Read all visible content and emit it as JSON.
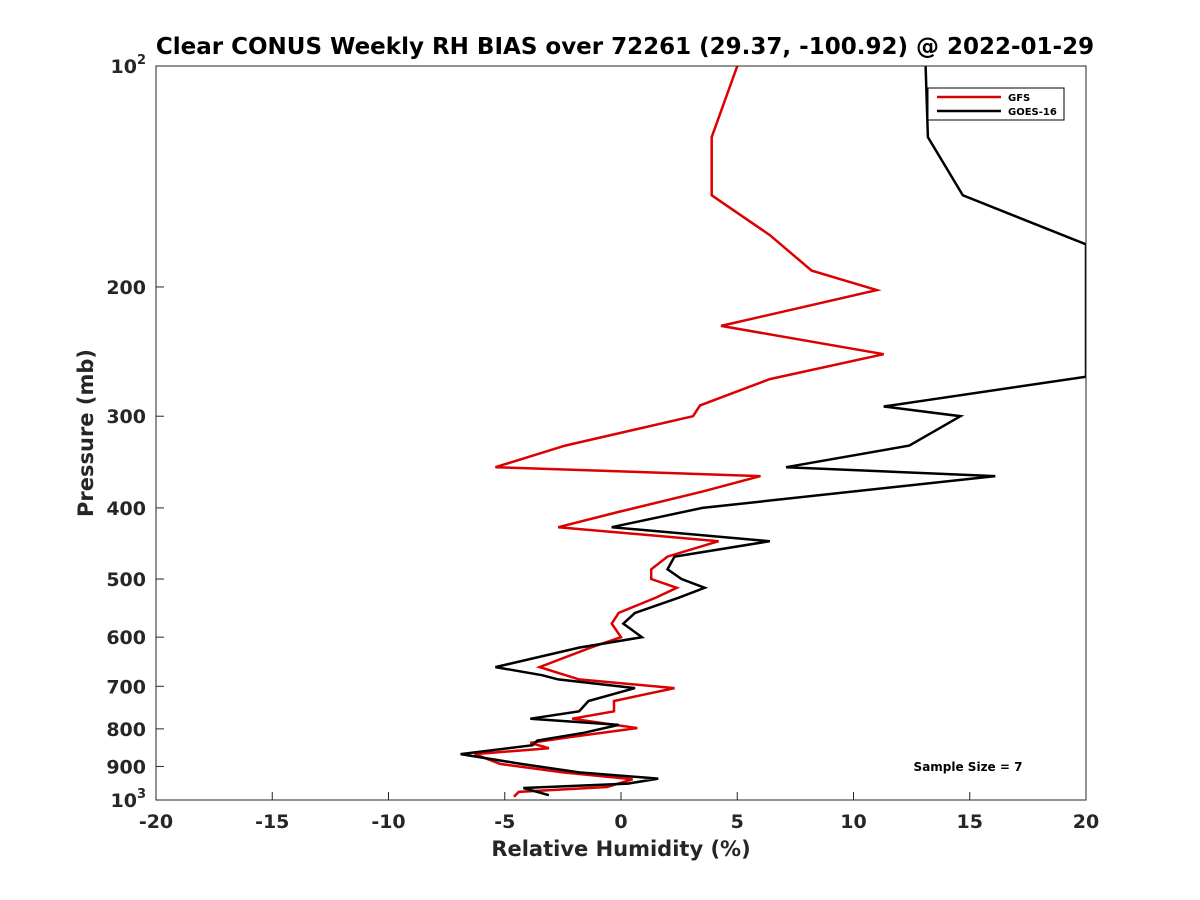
{
  "chart_data": {
    "type": "line",
    "title": "Clear CONUS Weekly RH BIAS over 72261 (29.37, -100.92) @ 2022-01-29",
    "xlabel": "Relative Humidity (%)",
    "ylabel": "Pressure (mb)",
    "xlim": [
      -20,
      20
    ],
    "ylim": [
      100,
      1000
    ],
    "y_scale": "log",
    "y_reversed": true,
    "grid": false,
    "x_ticks": [
      "-20",
      "-15",
      "-10",
      "-5",
      "0",
      "5",
      "10",
      "15",
      "20"
    ],
    "y_ticks": [
      {
        "value": 100,
        "base": "10",
        "exp": "2"
      },
      {
        "value": 200,
        "base": "200",
        "exp": ""
      },
      {
        "value": 300,
        "base": "300",
        "exp": ""
      },
      {
        "value": 400,
        "base": "400",
        "exp": ""
      },
      {
        "value": 500,
        "base": "500",
        "exp": ""
      },
      {
        "value": 600,
        "base": "600",
        "exp": ""
      },
      {
        "value": 700,
        "base": "700",
        "exp": ""
      },
      {
        "value": 800,
        "base": "800",
        "exp": ""
      },
      {
        "value": 900,
        "base": "900",
        "exp": ""
      },
      {
        "value": 1000,
        "base": "10",
        "exp": "3"
      }
    ],
    "legend_position": "top-right",
    "annotation": "Sample Size = 7",
    "series": [
      {
        "name": "GFS",
        "color": "#dd0000",
        "points": [
          [
            5.0,
            100
          ],
          [
            3.9,
            125
          ],
          [
            3.9,
            150
          ],
          [
            6.4,
            170
          ],
          [
            8.2,
            190
          ],
          [
            11.0,
            202
          ],
          [
            4.3,
            226
          ],
          [
            11.3,
            247
          ],
          [
            6.4,
            267
          ],
          [
            3.4,
            290
          ],
          [
            3.1,
            300
          ],
          [
            -2.4,
            329
          ],
          [
            -5.4,
            352
          ],
          [
            6.0,
            362
          ],
          [
            3.5,
            380
          ],
          [
            -0.1,
            405
          ],
          [
            -2.7,
            425
          ],
          [
            4.2,
            444
          ],
          [
            2.0,
            466
          ],
          [
            1.3,
            485
          ],
          [
            1.3,
            500
          ],
          [
            2.4,
            514
          ],
          [
            1.5,
            530
          ],
          [
            -0.1,
            556
          ],
          [
            -0.4,
            575
          ],
          [
            0.0,
            600
          ],
          [
            -1.3,
            620
          ],
          [
            -3.5,
            659
          ],
          [
            -1.8,
            685
          ],
          [
            2.3,
            704
          ],
          [
            -0.3,
            733
          ],
          [
            -0.3,
            757
          ],
          [
            -2.1,
            775
          ],
          [
            0.7,
            798
          ],
          [
            -2.2,
            821
          ],
          [
            -3.9,
            836
          ],
          [
            -3.1,
            850
          ],
          [
            -6.3,
            866
          ],
          [
            -5.2,
            893
          ],
          [
            -2.5,
            917
          ],
          [
            0.5,
            937
          ],
          [
            -0.6,
            960
          ],
          [
            -4.4,
            975
          ],
          [
            -4.6,
            990
          ]
        ]
      },
      {
        "name": "GOES-16",
        "color": "#000000",
        "points": [
          [
            13.1,
            100
          ],
          [
            13.2,
            125
          ],
          [
            14.7,
            150
          ],
          [
            20.0,
            175
          ],
          [
            20.0,
            265
          ],
          [
            11.3,
            291
          ],
          [
            14.6,
            300
          ],
          [
            12.4,
            329
          ],
          [
            7.1,
            352
          ],
          [
            16.1,
            362
          ],
          [
            3.5,
            400
          ],
          [
            -0.4,
            425
          ],
          [
            6.4,
            444
          ],
          [
            2.3,
            466
          ],
          [
            2.0,
            485
          ],
          [
            2.6,
            500
          ],
          [
            3.6,
            514
          ],
          [
            2.5,
            530
          ],
          [
            0.6,
            556
          ],
          [
            0.1,
            575
          ],
          [
            0.9,
            600
          ],
          [
            -1.8,
            620
          ],
          [
            -5.4,
            659
          ],
          [
            -3.4,
            676
          ],
          [
            -2.7,
            685
          ],
          [
            0.6,
            704
          ],
          [
            -1.4,
            733
          ],
          [
            -1.8,
            757
          ],
          [
            -3.9,
            775
          ],
          [
            -0.1,
            790
          ],
          [
            -1.6,
            810
          ],
          [
            -3.6,
            830
          ],
          [
            -3.8,
            842
          ],
          [
            -6.9,
            866
          ],
          [
            -4.3,
            893
          ],
          [
            -1.8,
            917
          ],
          [
            1.6,
            935
          ],
          [
            0.3,
            950
          ],
          [
            -4.2,
            963
          ],
          [
            -3.1,
            985
          ]
        ]
      }
    ]
  }
}
